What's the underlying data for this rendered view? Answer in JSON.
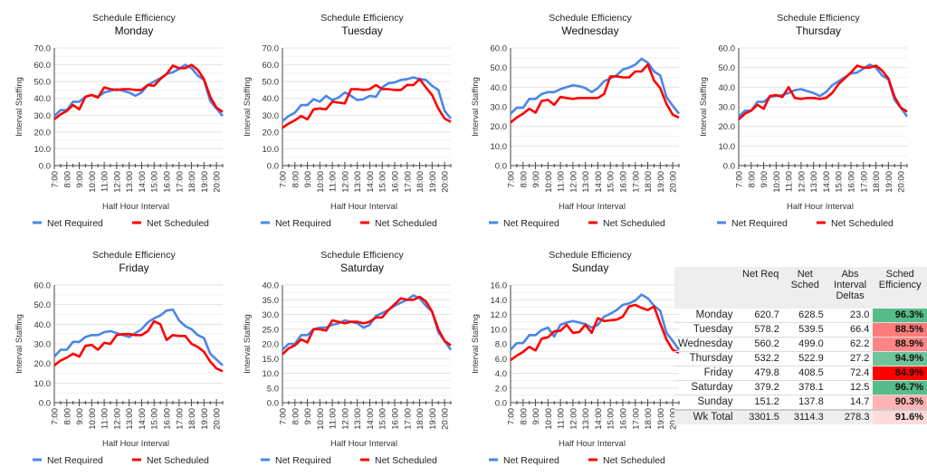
{
  "colors": {
    "net_required": "#4a86e8",
    "net_scheduled": "#ff0000",
    "grid": "#e6e6e6",
    "axis": "#333333"
  },
  "chart_data": [
    {
      "type": "line",
      "title": "Schedule Efficiency",
      "subtitle": "Monday",
      "xlabel": "Half Hour Interval",
      "ylabel": "Interval Staffing",
      "ylim": [
        0,
        70
      ],
      "yticks": [
        "0.0",
        "10.0",
        "20.0",
        "30.0",
        "40.0",
        "50.0",
        "60.0",
        "70.0"
      ],
      "grid": true,
      "legend": "bottom",
      "x": [
        "7:00",
        "7:30",
        "8:00",
        "8:30",
        "9:00",
        "9:30",
        "10:00",
        "10:30",
        "11:00",
        "11:30",
        "12:00",
        "12:30",
        "13:00",
        "13:30",
        "14:00",
        "14:30",
        "15:00",
        "15:30",
        "16:00",
        "16:30",
        "17:00",
        "17:30",
        "18:00",
        "18:30",
        "19:00",
        "19:30",
        "20:00",
        "20:30"
      ],
      "xtick_labels": [
        "7:00",
        "8:00",
        "9:00",
        "10:00",
        "11:00",
        "12:00",
        "13:00",
        "14:00",
        "15:00",
        "16:00",
        "17:00",
        "18:00",
        "19:00",
        "20:00"
      ],
      "series": [
        {
          "name": "Net Required",
          "values": [
            29.5,
            33,
            33,
            38,
            38,
            41,
            42,
            41,
            43.5,
            44.5,
            45.5,
            44.5,
            43.5,
            41.5,
            43.5,
            48,
            50,
            52,
            54.5,
            55.5,
            57.5,
            60,
            58,
            53.5,
            51,
            38.5,
            34,
            29.5
          ]
        },
        {
          "name": "Net Scheduled",
          "values": [
            27.5,
            30.5,
            32.5,
            36,
            33.5,
            41,
            42,
            40.5,
            46.5,
            45.5,
            45,
            45.5,
            45.5,
            45,
            45,
            48,
            47.5,
            51.5,
            54.5,
            59.5,
            58,
            58,
            60,
            57,
            51.5,
            41,
            34.5,
            32
          ]
        }
      ]
    },
    {
      "type": "line",
      "title": "Schedule Efficiency",
      "subtitle": "Tuesday",
      "xlabel": "Half Hour Interval",
      "ylabel": "Interval Staffing",
      "ylim": [
        0,
        70
      ],
      "yticks": [
        "0.0",
        "10.0",
        "20.0",
        "30.0",
        "40.0",
        "50.0",
        "60.0",
        "70.0"
      ],
      "grid": true,
      "legend": "bottom",
      "x": [
        "7:00",
        "7:30",
        "8:00",
        "8:30",
        "9:00",
        "9:30",
        "10:00",
        "10:30",
        "11:00",
        "11:30",
        "12:00",
        "12:30",
        "13:00",
        "13:30",
        "14:00",
        "14:30",
        "15:00",
        "15:30",
        "16:00",
        "16:30",
        "17:00",
        "17:30",
        "18:00",
        "18:30",
        "19:00",
        "19:30",
        "20:00",
        "20:30"
      ],
      "xtick_labels": [
        "7:00",
        "8:00",
        "9:00",
        "10:00",
        "11:00",
        "12:00",
        "13:00",
        "14:00",
        "15:00",
        "16:00",
        "17:00",
        "18:00",
        "19:00",
        "20:00"
      ],
      "series": [
        {
          "name": "Net Required",
          "values": [
            26.5,
            29.5,
            31.5,
            36,
            36,
            39.5,
            38,
            41.5,
            39,
            40.5,
            43.5,
            41.5,
            39,
            39.5,
            41.5,
            41,
            46.5,
            49,
            49.5,
            51,
            51.5,
            52.5,
            51.5,
            51,
            47.5,
            45,
            32.5,
            28
          ]
        },
        {
          "name": "Net Scheduled",
          "values": [
            22.5,
            25,
            27,
            29.5,
            27.5,
            33.5,
            34,
            33.5,
            38,
            37.5,
            37,
            45.5,
            45.5,
            45,
            45.5,
            48,
            45.5,
            45.5,
            45,
            45,
            48,
            48,
            51.5,
            46.5,
            42,
            34,
            28,
            26
          ]
        }
      ]
    },
    {
      "type": "line",
      "title": "Schedule Efficiency",
      "subtitle": "Wednesday",
      "xlabel": "Half Hour Interval",
      "ylabel": "Interval Staffing",
      "ylim": [
        0,
        60
      ],
      "yticks": [
        "0.0",
        "10.0",
        "20.0",
        "30.0",
        "40.0",
        "50.0",
        "60.0"
      ],
      "grid": true,
      "legend": "bottom",
      "x": [
        "7:00",
        "7:30",
        "8:00",
        "8:30",
        "9:00",
        "9:30",
        "10:00",
        "10:30",
        "11:00",
        "11:30",
        "12:00",
        "12:30",
        "13:00",
        "13:30",
        "14:00",
        "14:30",
        "15:00",
        "15:30",
        "16:00",
        "16:30",
        "17:00",
        "17:30",
        "18:00",
        "18:30",
        "19:00",
        "19:30",
        "20:00",
        "20:30"
      ],
      "xtick_labels": [
        "7:00",
        "8:00",
        "9:00",
        "10:00",
        "11:00",
        "12:00",
        "13:00",
        "14:00",
        "15:00",
        "16:00",
        "17:00",
        "18:00",
        "19:00",
        "20:00"
      ],
      "series": [
        {
          "name": "Net Required",
          "values": [
            26.5,
            29.5,
            29.5,
            34,
            34,
            36.5,
            37.5,
            37.5,
            39,
            40,
            41,
            40.5,
            39.5,
            37.5,
            39.5,
            43,
            44.5,
            46,
            49,
            50,
            51.5,
            54.5,
            52.5,
            48,
            46,
            35,
            30.5,
            26.5
          ]
        },
        {
          "name": "Net Scheduled",
          "values": [
            22,
            24.5,
            26.5,
            29,
            27,
            33,
            33.5,
            31,
            35,
            34.5,
            34,
            34.5,
            34.5,
            34.5,
            34.5,
            36.5,
            45.5,
            45.5,
            45,
            45,
            48,
            48,
            51.5,
            43.5,
            39.5,
            31.5,
            26,
            24.5
          ]
        }
      ]
    },
    {
      "type": "line",
      "title": "Schedule Efficiency",
      "subtitle": "Thursday",
      "xlabel": "Half Hour Interval",
      "ylabel": "Interval Staffing",
      "ylim": [
        0,
        60
      ],
      "yticks": [
        "0.0",
        "10.0",
        "20.0",
        "30.0",
        "40.0",
        "50.0",
        "60.0"
      ],
      "grid": true,
      "legend": "bottom",
      "x": [
        "7:00",
        "7:30",
        "8:00",
        "8:30",
        "9:00",
        "9:30",
        "10:00",
        "10:30",
        "11:00",
        "11:30",
        "12:00",
        "12:30",
        "13:00",
        "13:30",
        "14:00",
        "14:30",
        "15:00",
        "15:30",
        "16:00",
        "16:30",
        "17:00",
        "17:30",
        "18:00",
        "18:30",
        "19:00",
        "19:30",
        "20:00",
        "20:30"
      ],
      "xtick_labels": [
        "7:00",
        "8:00",
        "9:00",
        "10:00",
        "11:00",
        "12:00",
        "13:00",
        "14:00",
        "15:00",
        "16:00",
        "17:00",
        "18:00",
        "19:00",
        "20:00"
      ],
      "series": [
        {
          "name": "Net Required",
          "values": [
            25,
            28,
            28,
            32.5,
            32.5,
            35,
            35.5,
            36,
            37,
            38.5,
            39,
            38,
            37,
            35.5,
            37.5,
            41,
            43,
            45,
            47,
            47.5,
            49.5,
            51.5,
            50,
            46,
            44,
            33.5,
            29.5,
            25
          ]
        },
        {
          "name": "Net Scheduled",
          "values": [
            23.5,
            26.5,
            28,
            31,
            29,
            35.5,
            36,
            35,
            40,
            34.5,
            34,
            34.5,
            34.5,
            34,
            34.5,
            37,
            41.5,
            44.5,
            47.5,
            51,
            50,
            50,
            51,
            48.5,
            44.5,
            35,
            29.5,
            27.5
          ]
        }
      ]
    },
    {
      "type": "line",
      "title": "Schedule Efficiency",
      "subtitle": "Friday",
      "xlabel": "Half Hour Interval",
      "ylabel": "Interval Staffing",
      "ylim": [
        0,
        60
      ],
      "yticks": [
        "0.0",
        "10.0",
        "20.0",
        "30.0",
        "40.0",
        "50.0",
        "60.0"
      ],
      "grid": true,
      "legend": "bottom",
      "x": [
        "7:00",
        "7:30",
        "8:00",
        "8:30",
        "9:00",
        "9:30",
        "10:00",
        "10:30",
        "11:00",
        "11:30",
        "12:00",
        "12:30",
        "13:00",
        "13:30",
        "14:00",
        "14:30",
        "15:00",
        "15:30",
        "16:00",
        "16:30",
        "17:00",
        "17:30",
        "18:00",
        "18:30",
        "19:00",
        "19:30",
        "20:00",
        "20:30"
      ],
      "xtick_labels": [
        "7:00",
        "8:00",
        "9:00",
        "10:00",
        "11:00",
        "12:00",
        "13:00",
        "14:00",
        "15:00",
        "16:00",
        "17:00",
        "18:00",
        "19:00",
        "20:00"
      ],
      "series": [
        {
          "name": "Net Required",
          "values": [
            23.5,
            27,
            27,
            31,
            31,
            33.5,
            34.5,
            34.5,
            36,
            36.5,
            35.5,
            34.5,
            33.5,
            35.5,
            37.5,
            41,
            43,
            44.5,
            47,
            47.5,
            42,
            39,
            37.5,
            34.5,
            33,
            25,
            22,
            19
          ]
        },
        {
          "name": "Net Scheduled",
          "values": [
            19,
            21.5,
            23,
            25,
            23.5,
            29,
            29.5,
            27,
            30.5,
            30,
            34.5,
            35,
            35,
            34.5,
            34.5,
            36.5,
            41.5,
            40,
            32,
            34.5,
            34,
            34,
            30,
            28.5,
            26,
            21,
            17.5,
            16
          ]
        }
      ]
    },
    {
      "type": "line",
      "title": "Schedule Efficiency",
      "subtitle": "Saturday",
      "xlabel": "Half Hour Interval",
      "ylabel": "Interval Staffing",
      "ylim": [
        0,
        40
      ],
      "yticks": [
        "0.0",
        "5.0",
        "10.0",
        "15.0",
        "20.0",
        "25.0",
        "30.0",
        "35.0",
        "40.0"
      ],
      "grid": true,
      "legend": "bottom",
      "x": [
        "7:00",
        "7:30",
        "8:00",
        "8:30",
        "9:00",
        "9:30",
        "10:00",
        "10:30",
        "11:00",
        "11:30",
        "12:00",
        "12:30",
        "13:00",
        "13:30",
        "14:00",
        "14:30",
        "15:00",
        "15:30",
        "16:00",
        "16:30",
        "17:00",
        "17:30",
        "18:00",
        "18:30",
        "19:00",
        "19:30",
        "20:00",
        "20:30"
      ],
      "xtick_labels": [
        "7:00",
        "8:00",
        "9:00",
        "10:00",
        "11:00",
        "12:00",
        "13:00",
        "14:00",
        "15:00",
        "16:00",
        "17:00",
        "18:00",
        "19:00",
        "20:00"
      ],
      "series": [
        {
          "name": "Net Required",
          "values": [
            18,
            20,
            20,
            23,
            23,
            25,
            25.5,
            25.5,
            26.5,
            27,
            28,
            27.5,
            27,
            25.5,
            26.5,
            29.5,
            30.5,
            31.5,
            33,
            34,
            35,
            36.5,
            35.5,
            33,
            31,
            24,
            21,
            18
          ]
        },
        {
          "name": "Net Scheduled",
          "values": [
            16.5,
            18.5,
            19.5,
            21.5,
            20.5,
            25,
            25,
            24.5,
            28,
            27.5,
            27,
            27.5,
            27.5,
            27,
            27.5,
            29,
            29,
            31.5,
            33.5,
            35.5,
            35,
            35,
            36,
            34.5,
            31,
            25,
            21,
            19.5
          ]
        }
      ]
    },
    {
      "type": "line",
      "title": "Schedule Efficiency",
      "subtitle": "Sunday",
      "xlabel": "Half Hour Interval",
      "ylabel": "Interval Staffing",
      "ylim": [
        0,
        16
      ],
      "yticks": [
        "0.0",
        "2.0",
        "4.0",
        "6.0",
        "8.0",
        "10.0",
        "12.0",
        "14.0",
        "16.0"
      ],
      "grid": true,
      "legend": "bottom",
      "x": [
        "7:00",
        "7:30",
        "8:00",
        "8:30",
        "9:00",
        "9:30",
        "10:00",
        "10:30",
        "11:00",
        "11:30",
        "12:00",
        "12:30",
        "13:00",
        "13:30",
        "14:00",
        "14:30",
        "15:00",
        "15:30",
        "16:00",
        "16:30",
        "17:00",
        "17:30",
        "18:00",
        "18:30",
        "19:00",
        "19:30",
        "20:00",
        "20:30"
      ],
      "xtick_labels": [
        "7:00",
        "8:00",
        "9:00",
        "10:00",
        "11:00",
        "12:00",
        "13:00",
        "14:00",
        "15:00",
        "16:00",
        "17:00",
        "18:00",
        "19:00",
        "20:00"
      ],
      "series": [
        {
          "name": "Net Required",
          "values": [
            7.2,
            8.1,
            8.1,
            9.2,
            9.2,
            9.9,
            10.2,
            9.0,
            10.6,
            10.9,
            11.1,
            10.9,
            10.7,
            10.2,
            10.6,
            11.7,
            12.1,
            12.6,
            13.3,
            13.5,
            13.9,
            14.7,
            14.2,
            13.2,
            12.5,
            9.5,
            8.4,
            7.2
          ]
        },
        {
          "name": "Net Scheduled",
          "values": [
            5.8,
            6.4,
            6.9,
            7.6,
            7.1,
            8.7,
            8.9,
            9.7,
            9.8,
            10.6,
            9.5,
            9.6,
            10.6,
            9.5,
            11.5,
            11.1,
            11.2,
            11.3,
            11.7,
            13.1,
            13.3,
            12.9,
            12.6,
            13.1,
            10.8,
            8.6,
            7.2,
            6.8
          ]
        }
      ]
    }
  ],
  "table": {
    "headers": [
      {
        "line1": "",
        "line2": "",
        "line3": ""
      },
      {
        "line1": "Net Req",
        "line2": "",
        "line3": ""
      },
      {
        "line1": "Net",
        "line2": "Sched",
        "line3": ""
      },
      {
        "line1": "Abs",
        "line2": "Interval",
        "line3": "Deltas"
      },
      {
        "line1": "Sched",
        "line2": "Efficiency",
        "line3": ""
      }
    ],
    "rows": [
      {
        "day": "Monday",
        "net_req": "620.7",
        "net_sched": "628.5",
        "abs_deltas": "23.0",
        "efficiency": "96.3%",
        "eff_color": "#57bb8a"
      },
      {
        "day": "Tuesday",
        "net_req": "578.2",
        "net_sched": "539.5",
        "abs_deltas": "66.4",
        "efficiency": "88.5%",
        "eff_color": "#ff7b7b"
      },
      {
        "day": "Wednesday",
        "net_req": "560.2",
        "net_sched": "499.0",
        "abs_deltas": "62.2",
        "efficiency": "88.9%",
        "eff_color": "#ff8585"
      },
      {
        "day": "Thursday",
        "net_req": "532.2",
        "net_sched": "522.9",
        "abs_deltas": "27.2",
        "efficiency": "94.9%",
        "eff_color": "#6ec49a"
      },
      {
        "day": "Friday",
        "net_req": "479.8",
        "net_sched": "408.5",
        "abs_deltas": "72.4",
        "efficiency": "84.9%",
        "eff_color": "#ff0000"
      },
      {
        "day": "Saturday",
        "net_req": "379.2",
        "net_sched": "378.1",
        "abs_deltas": "12.5",
        "efficiency": "96.7%",
        "eff_color": "#57bb8a"
      },
      {
        "day": "Sunday",
        "net_req": "151.2",
        "net_sched": "137.8",
        "abs_deltas": "14.7",
        "efficiency": "90.3%",
        "eff_color": "#ffb3b3"
      }
    ],
    "total": {
      "day": "Wk Total",
      "net_req": "3301.5",
      "net_sched": "3114.3",
      "abs_deltas": "278.3",
      "efficiency": "91.6%",
      "eff_color": "#ffdcdc"
    }
  }
}
